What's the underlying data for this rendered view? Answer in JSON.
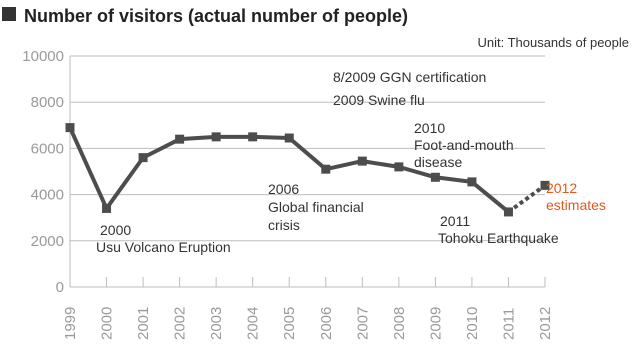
{
  "chart_data": {
    "type": "line",
    "title": "Number of visitors (actual number of people)",
    "unit": "Unit: Thousands of people",
    "x": [
      "1999",
      "2000",
      "2001",
      "2002",
      "2003",
      "2004",
      "2005",
      "2006",
      "2007",
      "2008",
      "2009",
      "2010",
      "2011",
      "2012"
    ],
    "values": [
      6900,
      3400,
      5600,
      6400,
      6500,
      6500,
      6450,
      5100,
      5450,
      5200,
      4750,
      4550,
      3250,
      4400
    ],
    "estimate_from_index": 12,
    "ylim": [
      0,
      10000
    ],
    "yticks": [
      "0",
      "2000",
      "4000",
      "6000",
      "8000",
      "10000"
    ],
    "grid": true,
    "colors": {
      "line": "#4d4d4d",
      "grid": "#bdbdbd",
      "estimate_label": "#e05a1c",
      "tick": "#9a9a9a"
    },
    "annotations": {
      "a2000_year": "2000",
      "a2000_text": "Usu Volcano Eruption",
      "a2006_year": "2006",
      "a2006_line1": "Global financial",
      "a2006_line2": "crisis",
      "a2009_ggn": "8/2009 GGN certification",
      "a2009_flu": "2009 Swine flu",
      "a2010_year": "2010",
      "a2010_line1": "Foot-and-mouth",
      "a2010_line2": "disease",
      "a2011_year": "2011",
      "a2011_text": "Tohoku Earthquake",
      "a2012_year": "2012",
      "a2012_text": "estimates"
    }
  }
}
